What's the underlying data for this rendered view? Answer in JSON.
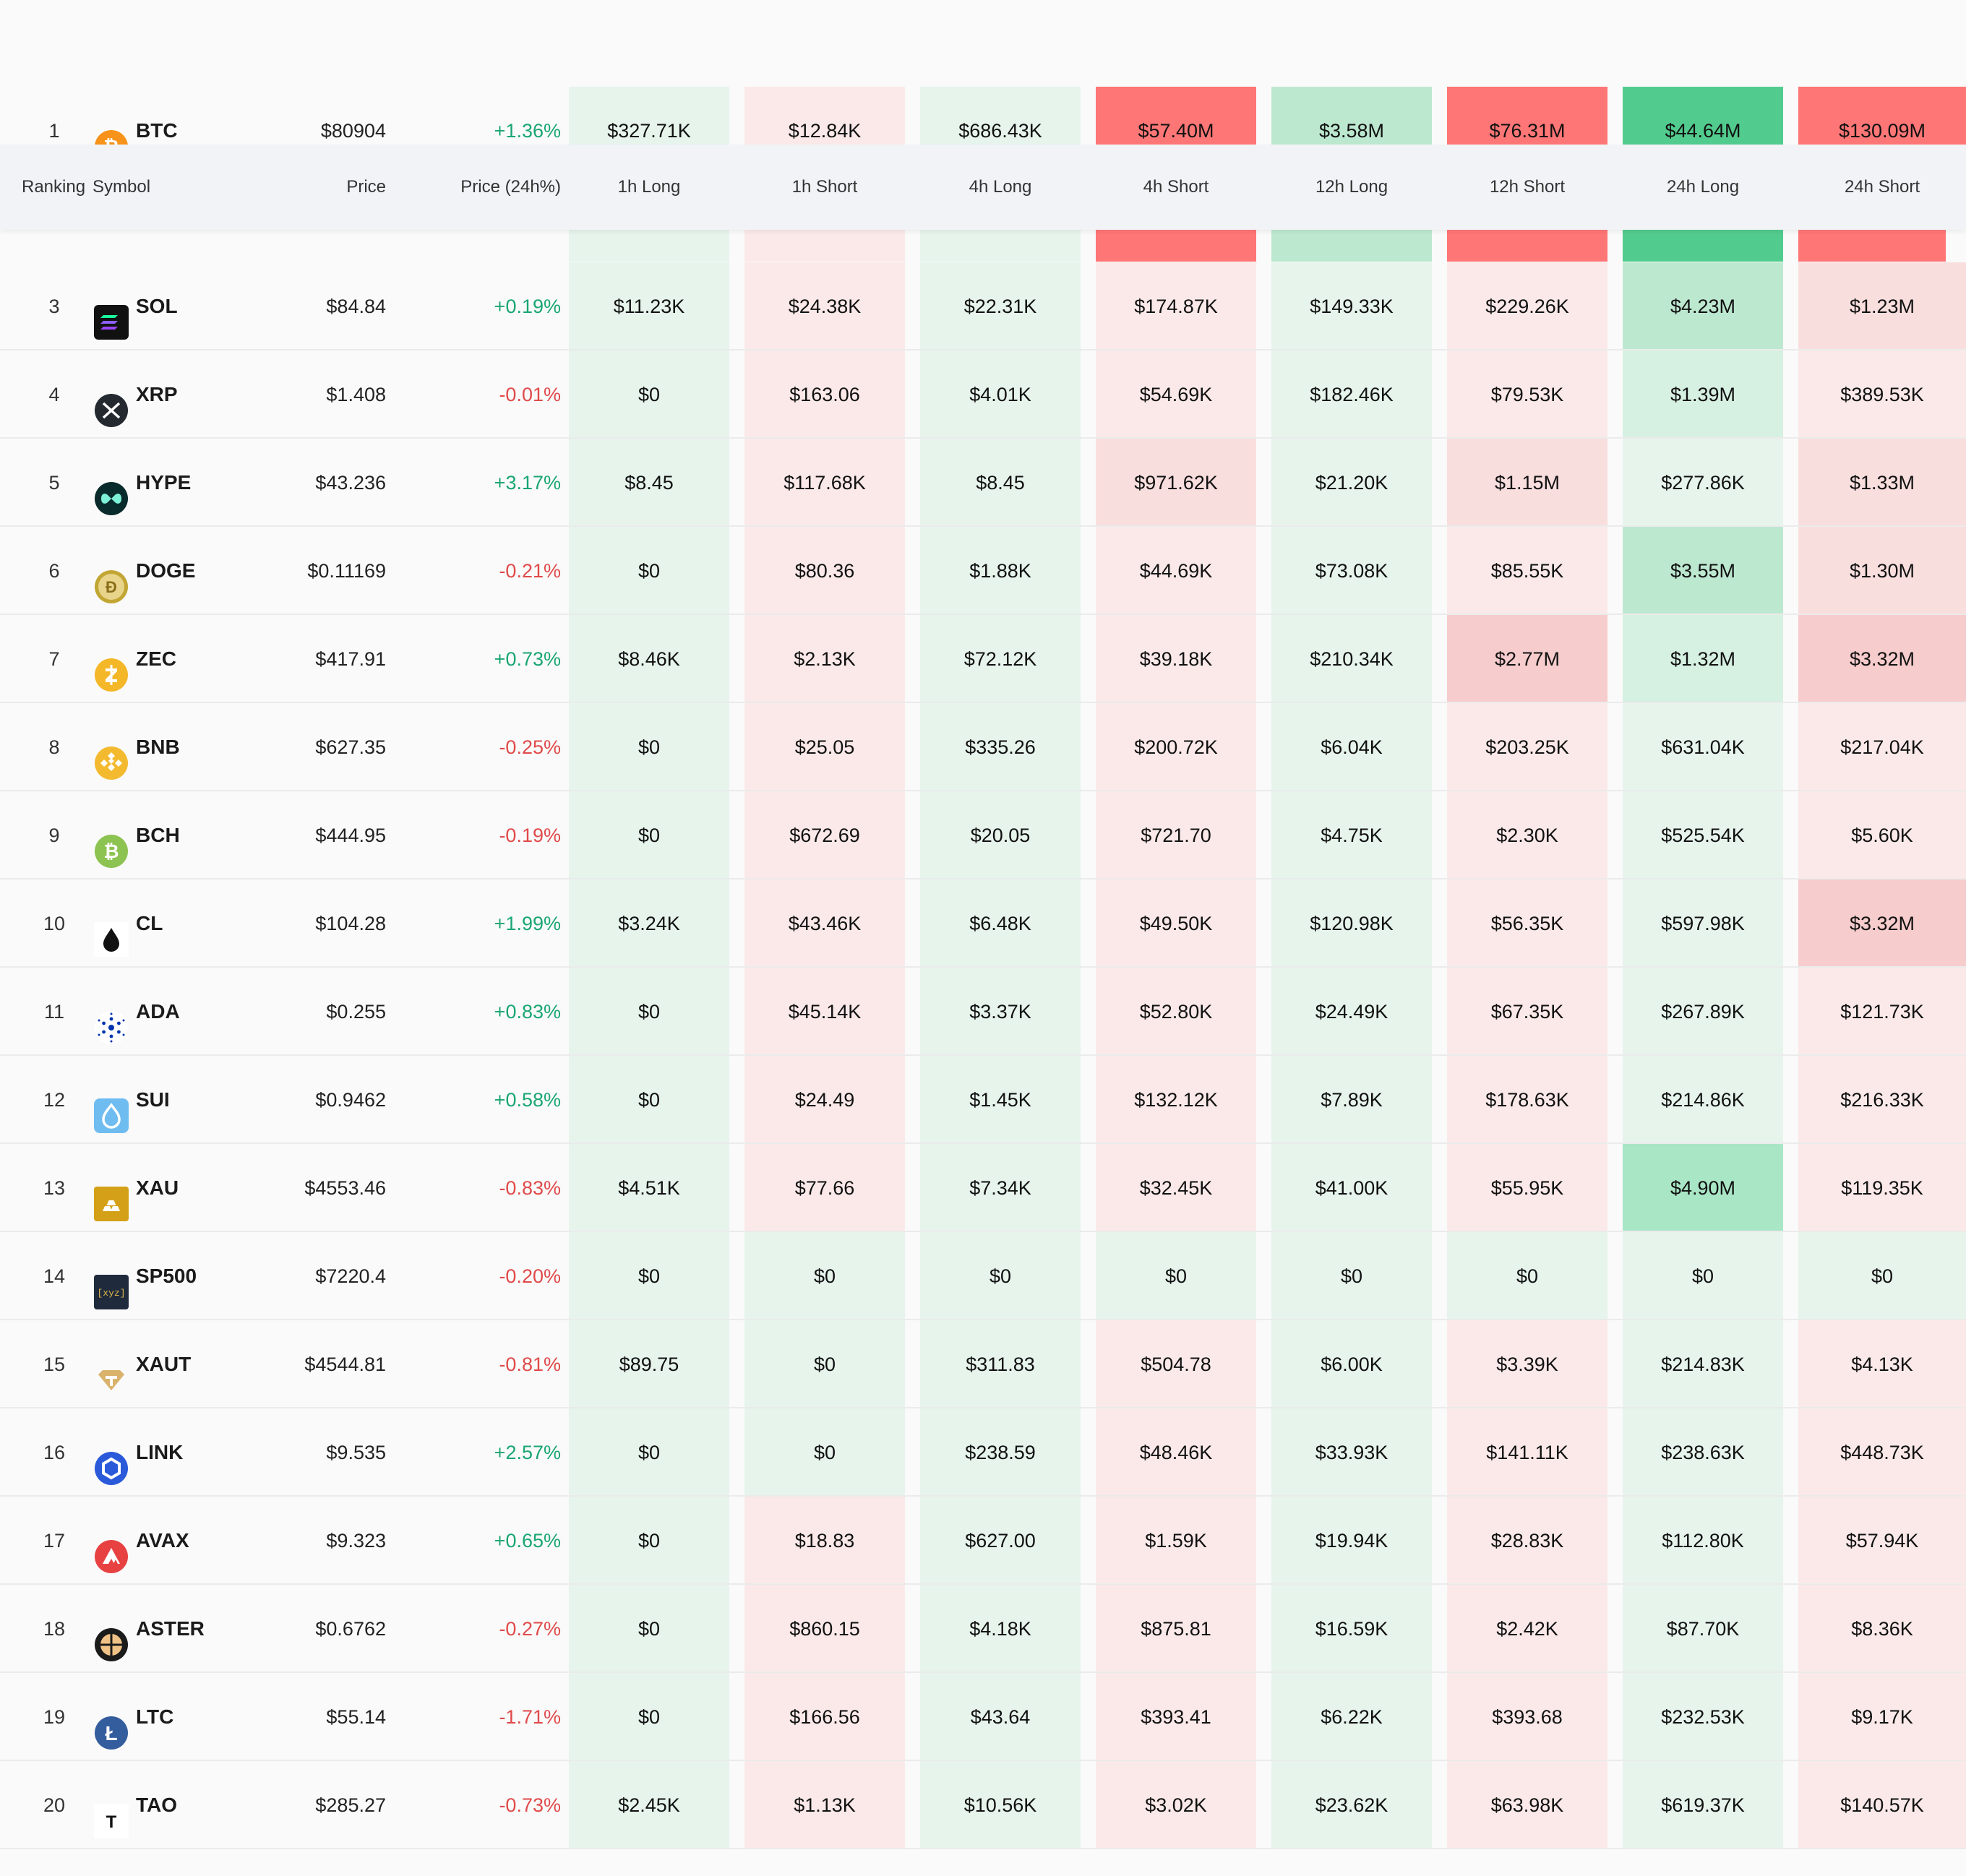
{
  "header": {
    "ranking": "Ranking",
    "symbol": "Symbol",
    "price": "Price",
    "change": "Price (24h%)",
    "buckets": [
      "1h Long",
      "1h Short",
      "4h Long",
      "4h Short",
      "12h Long",
      "12h Short",
      "24h Long",
      "24h Short"
    ]
  },
  "colors": {
    "long_light": "#e6f4ec",
    "short_light": "#fbe9e9",
    "long_mid": "#bde8d0",
    "long_strong": "#52cc8e",
    "short_mid": "#f7cccc",
    "short_strong": "#ff7676",
    "up": "#1aa672",
    "down": "#e04a4a"
  },
  "rows": [
    {
      "rank": "1",
      "symbol": "BTC",
      "icon": "btc-icon",
      "price": "$80904",
      "change": "+1.36%",
      "dir": "up",
      "values": [
        "$327.71K",
        "$12.84K",
        "$686.43K",
        "$57.40M",
        "$3.58M",
        "$76.31M",
        "$44.64M",
        "$130.09M"
      ],
      "shades": [
        "L1",
        "S1",
        "L1",
        "S3",
        "L2",
        "S3",
        "L3",
        "S3"
      ]
    },
    {
      "rank": "3",
      "symbol": "SOL",
      "icon": "sol-icon",
      "price": "$84.84",
      "change": "+0.19%",
      "dir": "up",
      "values": [
        "$11.23K",
        "$24.38K",
        "$22.31K",
        "$174.87K",
        "$149.33K",
        "$229.26K",
        "$4.23M",
        "$1.23M"
      ],
      "shades": [
        "L1",
        "S1",
        "L1",
        "S1",
        "L1",
        "S1",
        "L2",
        "S1b"
      ]
    },
    {
      "rank": "4",
      "symbol": "XRP",
      "icon": "xrp-icon",
      "price": "$1.408",
      "change": "-0.01%",
      "dir": "dn",
      "values": [
        "$0",
        "$163.06",
        "$4.01K",
        "$54.69K",
        "$182.46K",
        "$79.53K",
        "$1.39M",
        "$389.53K"
      ],
      "shades": [
        "L1",
        "S1",
        "L1",
        "S1",
        "L1",
        "S1",
        "L1b",
        "S1"
      ]
    },
    {
      "rank": "5",
      "symbol": "HYPE",
      "icon": "hype-icon",
      "price": "$43.236",
      "change": "+3.17%",
      "dir": "up",
      "values": [
        "$8.45",
        "$117.68K",
        "$8.45",
        "$971.62K",
        "$21.20K",
        "$1.15M",
        "$277.86K",
        "$1.33M"
      ],
      "shades": [
        "L1",
        "S1",
        "L1",
        "S1b",
        "L1",
        "S1b",
        "L1",
        "S1b"
      ]
    },
    {
      "rank": "6",
      "symbol": "DOGE",
      "icon": "doge-icon",
      "price": "$0.11169",
      "change": "-0.21%",
      "dir": "dn",
      "values": [
        "$0",
        "$80.36",
        "$1.88K",
        "$44.69K",
        "$73.08K",
        "$85.55K",
        "$3.55M",
        "$1.30M"
      ],
      "shades": [
        "L1",
        "S1",
        "L1",
        "S1",
        "L1",
        "S1",
        "L2",
        "S1b"
      ]
    },
    {
      "rank": "7",
      "symbol": "ZEC",
      "icon": "zec-icon",
      "price": "$417.91",
      "change": "+0.73%",
      "dir": "up",
      "values": [
        "$8.46K",
        "$2.13K",
        "$72.12K",
        "$39.18K",
        "$210.34K",
        "$2.77M",
        "$1.32M",
        "$3.32M"
      ],
      "shades": [
        "L1",
        "S1",
        "L1",
        "S1",
        "L1",
        "S2",
        "L1b",
        "S2"
      ]
    },
    {
      "rank": "8",
      "symbol": "BNB",
      "icon": "bnb-icon",
      "price": "$627.35",
      "change": "-0.25%",
      "dir": "dn",
      "values": [
        "$0",
        "$25.05",
        "$335.26",
        "$200.72K",
        "$6.04K",
        "$203.25K",
        "$631.04K",
        "$217.04K"
      ],
      "shades": [
        "L1",
        "S1",
        "L1",
        "S1",
        "L1",
        "S1",
        "L1",
        "S1"
      ]
    },
    {
      "rank": "9",
      "symbol": "BCH",
      "icon": "bch-icon",
      "price": "$444.95",
      "change": "-0.19%",
      "dir": "dn",
      "values": [
        "$0",
        "$672.69",
        "$20.05",
        "$721.70",
        "$4.75K",
        "$2.30K",
        "$525.54K",
        "$5.60K"
      ],
      "shades": [
        "L1",
        "S1",
        "L1",
        "S1",
        "L1",
        "S1",
        "L1",
        "S1"
      ]
    },
    {
      "rank": "10",
      "symbol": "CL",
      "icon": "oil-drop-icon",
      "price": "$104.28",
      "change": "+1.99%",
      "dir": "up",
      "values": [
        "$3.24K",
        "$43.46K",
        "$6.48K",
        "$49.50K",
        "$120.98K",
        "$56.35K",
        "$597.98K",
        "$3.32M"
      ],
      "shades": [
        "L1",
        "S1",
        "L1",
        "S1",
        "L1",
        "S1",
        "L1",
        "S2"
      ]
    },
    {
      "rank": "11",
      "symbol": "ADA",
      "icon": "ada-icon",
      "price": "$0.255",
      "change": "+0.83%",
      "dir": "up",
      "values": [
        "$0",
        "$45.14K",
        "$3.37K",
        "$52.80K",
        "$24.49K",
        "$67.35K",
        "$267.89K",
        "$121.73K"
      ],
      "shades": [
        "L1",
        "S1",
        "L1",
        "S1",
        "L1",
        "S1",
        "L1",
        "S1"
      ]
    },
    {
      "rank": "12",
      "symbol": "SUI",
      "icon": "sui-icon",
      "price": "$0.9462",
      "change": "+0.58%",
      "dir": "up",
      "values": [
        "$0",
        "$24.49",
        "$1.45K",
        "$132.12K",
        "$7.89K",
        "$178.63K",
        "$214.86K",
        "$216.33K"
      ],
      "shades": [
        "L1",
        "S1",
        "L1",
        "S1",
        "L1",
        "S1",
        "L1",
        "S1"
      ]
    },
    {
      "rank": "13",
      "symbol": "XAU",
      "icon": "gold-bars-icon",
      "price": "$4553.46",
      "change": "-0.83%",
      "dir": "dn",
      "values": [
        "$4.51K",
        "$77.66",
        "$7.34K",
        "$32.45K",
        "$41.00K",
        "$55.95K",
        "$4.90M",
        "$119.35K"
      ],
      "shades": [
        "L1",
        "S1",
        "L1",
        "S1",
        "L1",
        "S1",
        "L2b",
        "S1"
      ]
    },
    {
      "rank": "14",
      "symbol": "SP500",
      "icon": "xyz-icon",
      "price": "$7220.4",
      "change": "-0.20%",
      "dir": "dn",
      "values": [
        "$0",
        "$0",
        "$0",
        "$0",
        "$0",
        "$0",
        "$0",
        "$0"
      ],
      "shades": [
        "L1",
        "L1",
        "L1",
        "L1",
        "L1",
        "L1",
        "L1",
        "L1"
      ]
    },
    {
      "rank": "15",
      "symbol": "XAUT",
      "icon": "xaut-icon",
      "price": "$4544.81",
      "change": "-0.81%",
      "dir": "dn",
      "values": [
        "$89.75",
        "$0",
        "$311.83",
        "$504.78",
        "$6.00K",
        "$3.39K",
        "$214.83K",
        "$4.13K"
      ],
      "shades": [
        "L1",
        "L1",
        "L1",
        "S1",
        "L1",
        "S1",
        "L1",
        "S1"
      ]
    },
    {
      "rank": "16",
      "symbol": "LINK",
      "icon": "link-icon",
      "price": "$9.535",
      "change": "+2.57%",
      "dir": "up",
      "values": [
        "$0",
        "$0",
        "$238.59",
        "$48.46K",
        "$33.93K",
        "$141.11K",
        "$238.63K",
        "$448.73K"
      ],
      "shades": [
        "L1",
        "L1",
        "L1",
        "S1",
        "L1",
        "S1",
        "L1",
        "S1"
      ]
    },
    {
      "rank": "17",
      "symbol": "AVAX",
      "icon": "avax-icon",
      "price": "$9.323",
      "change": "+0.65%",
      "dir": "up",
      "values": [
        "$0",
        "$18.83",
        "$627.00",
        "$1.59K",
        "$19.94K",
        "$28.83K",
        "$112.80K",
        "$57.94K"
      ],
      "shades": [
        "L1",
        "S1",
        "L1",
        "S1",
        "L1",
        "S1",
        "L1",
        "S1"
      ]
    },
    {
      "rank": "18",
      "symbol": "ASTER",
      "icon": "aster-icon",
      "price": "$0.6762",
      "change": "-0.27%",
      "dir": "dn",
      "values": [
        "$0",
        "$860.15",
        "$4.18K",
        "$875.81",
        "$16.59K",
        "$2.42K",
        "$87.70K",
        "$8.36K"
      ],
      "shades": [
        "L1",
        "S1",
        "L1",
        "S1",
        "L1",
        "S1",
        "L1",
        "S1"
      ]
    },
    {
      "rank": "19",
      "symbol": "LTC",
      "icon": "ltc-icon",
      "price": "$55.14",
      "change": "-1.71%",
      "dir": "dn",
      "values": [
        "$0",
        "$166.56",
        "$43.64",
        "$393.41",
        "$6.22K",
        "$393.68",
        "$232.53K",
        "$9.17K"
      ],
      "shades": [
        "L1",
        "S1",
        "L1",
        "S1",
        "L1",
        "S1",
        "L1",
        "S1"
      ]
    },
    {
      "rank": "20",
      "symbol": "TAO",
      "icon": "tao-icon",
      "price": "$285.27",
      "change": "-0.73%",
      "dir": "dn",
      "values": [
        "$2.45K",
        "$1.13K",
        "$10.56K",
        "$3.02K",
        "$23.62K",
        "$63.98K",
        "$619.37K",
        "$140.57K"
      ],
      "shades": [
        "L1",
        "S1",
        "L1",
        "S1",
        "L1",
        "S1",
        "L1",
        "S1"
      ]
    }
  ]
}
